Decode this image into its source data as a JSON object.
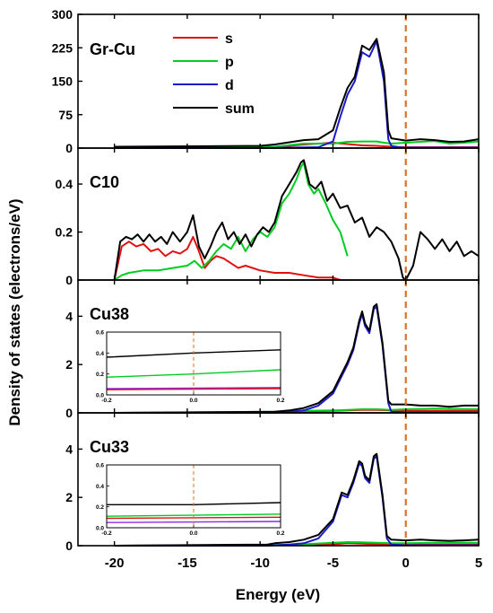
{
  "figure": {
    "xlabel": "Energy (eV)",
    "ylabel": "Density of states (electrons/eV)",
    "xticks": [
      "-20",
      "-15",
      "-10",
      "-5",
      "0",
      "5"
    ],
    "xlim": [
      -22.5,
      5
    ],
    "fermi_level": 0
  },
  "colors": {
    "s": "#e01010",
    "p": "#00cc22",
    "d": "#1a1acc",
    "sum": "#000000",
    "fermi": "#e07020",
    "inset_d": "#8a2be2"
  },
  "chart_data": [
    {
      "type": "line",
      "title": "Gr-Cu",
      "ylim": [
        0,
        300
      ],
      "yticks": [
        "0",
        "75",
        "150",
        "225",
        "300"
      ],
      "legend": {
        "position": "top-left",
        "entries": [
          "s",
          "p",
          "d",
          "sum"
        ]
      },
      "series": [
        {
          "name": "s",
          "x": [
            -20,
            -9,
            -7,
            -5,
            -4,
            -3,
            -2,
            -1.5,
            -1,
            0,
            2,
            5
          ],
          "values": [
            1,
            2,
            8,
            12,
            9,
            6,
            5,
            4,
            3,
            2,
            2,
            2
          ]
        },
        {
          "name": "p",
          "x": [
            -20,
            -9,
            -7,
            -5,
            -4,
            -3,
            -2,
            -1.5,
            -1,
            0,
            1,
            2,
            3,
            4,
            5
          ],
          "values": [
            2,
            3,
            10,
            10,
            14,
            15,
            15,
            12,
            10,
            12,
            14,
            16,
            10,
            12,
            15
          ]
        },
        {
          "name": "d",
          "x": [
            -20,
            -10,
            -8,
            -6,
            -5,
            -4.5,
            -4,
            -3.5,
            -3,
            -2.5,
            -2,
            -1.5,
            -1.2,
            -1,
            -0.5,
            0,
            2,
            5
          ],
          "values": [
            0,
            0,
            1,
            2,
            15,
            70,
            120,
            150,
            215,
            205,
            240,
            150,
            20,
            5,
            2,
            1,
            1,
            1
          ]
        },
        {
          "name": "sum",
          "x": [
            -20,
            -10,
            -9,
            -7,
            -6,
            -5,
            -4.5,
            -4,
            -3.5,
            -3,
            -2.5,
            -2,
            -1.5,
            -1.2,
            -1,
            0,
            1,
            2,
            3,
            4,
            5
          ],
          "values": [
            3,
            5,
            8,
            18,
            20,
            40,
            90,
            135,
            160,
            230,
            220,
            245,
            170,
            40,
            22,
            17,
            20,
            18,
            14,
            15,
            20
          ]
        }
      ]
    },
    {
      "type": "line",
      "title": "C10",
      "ylim": [
        0,
        0.55
      ],
      "yticks": [
        "0",
        "0.2",
        "0.4"
      ],
      "series": [
        {
          "name": "s",
          "x": [
            -20,
            -19.5,
            -19,
            -18.5,
            -18,
            -17.5,
            -17,
            -16.5,
            -16,
            -15.5,
            -15,
            -14.6,
            -14.2,
            -13.8,
            -13.4,
            -13,
            -12.5,
            -12,
            -11.5,
            -11,
            -10,
            -9,
            -8,
            -7,
            -6,
            -5,
            -4.5
          ],
          "values": [
            0,
            0.14,
            0.16,
            0.14,
            0.15,
            0.12,
            0.13,
            0.1,
            0.12,
            0.11,
            0.13,
            0.18,
            0.12,
            0.05,
            0.08,
            0.1,
            0.09,
            0.07,
            0.05,
            0.06,
            0.04,
            0.03,
            0.03,
            0.02,
            0.01,
            0.01,
            0
          ]
        },
        {
          "name": "p",
          "x": [
            -20,
            -19.5,
            -19,
            -18,
            -17,
            -16,
            -15,
            -14.5,
            -14,
            -13.5,
            -13,
            -12.5,
            -12,
            -11.5,
            -11,
            -10.5,
            -10,
            -9.5,
            -9,
            -8.5,
            -8,
            -7.5,
            -7.2,
            -7,
            -6.7,
            -6.3,
            -6,
            -5.5,
            -5,
            -4.5,
            -4
          ],
          "values": [
            0,
            0.02,
            0.03,
            0.04,
            0.04,
            0.05,
            0.06,
            0.08,
            0.05,
            0.08,
            0.12,
            0.15,
            0.13,
            0.18,
            0.12,
            0.17,
            0.2,
            0.18,
            0.22,
            0.32,
            0.36,
            0.42,
            0.47,
            0.49,
            0.4,
            0.36,
            0.38,
            0.32,
            0.25,
            0.2,
            0.1
          ]
        },
        {
          "name": "sum",
          "x": [
            -20,
            -19.6,
            -19.2,
            -18.8,
            -18.4,
            -18,
            -17.6,
            -17.2,
            -16.8,
            -16.4,
            -16,
            -15.5,
            -15,
            -14.6,
            -14.2,
            -13.8,
            -13.4,
            -13,
            -12.6,
            -12.2,
            -11.8,
            -11.4,
            -11,
            -10.6,
            -10.2,
            -9.8,
            -9.4,
            -9,
            -8.5,
            -8,
            -7.5,
            -7.2,
            -7,
            -6.6,
            -6.2,
            -5.8,
            -5.4,
            -5,
            -4.5,
            -4,
            -3.5,
            -3,
            -2.5,
            -2,
            -1.5,
            -1,
            -0.5,
            -0.2,
            0,
            0.5,
            1,
            1.5,
            2,
            2.5,
            3,
            3.5,
            4,
            4.5,
            5
          ],
          "values": [
            0,
            0.16,
            0.18,
            0.17,
            0.19,
            0.16,
            0.19,
            0.16,
            0.18,
            0.15,
            0.2,
            0.16,
            0.2,
            0.27,
            0.14,
            0.09,
            0.14,
            0.2,
            0.24,
            0.17,
            0.2,
            0.15,
            0.19,
            0.14,
            0.19,
            0.22,
            0.2,
            0.24,
            0.35,
            0.4,
            0.45,
            0.49,
            0.5,
            0.4,
            0.38,
            0.41,
            0.33,
            0.36,
            0.3,
            0.31,
            0.24,
            0.26,
            0.18,
            0.22,
            0.2,
            0.16,
            0.09,
            0.01,
            0.0,
            0.06,
            0.2,
            0.17,
            0.13,
            0.17,
            0.12,
            0.16,
            0.1,
            0.12,
            0.1
          ]
        }
      ]
    },
    {
      "type": "line",
      "title": "Cu38",
      "ylim": [
        0,
        5.5
      ],
      "yticks": [
        "0",
        "2",
        "4"
      ],
      "series": [
        {
          "name": "s",
          "x": [
            -20,
            -9,
            -7,
            -5,
            -4,
            -3,
            -2,
            -1,
            0,
            2,
            5
          ],
          "values": [
            0,
            0.02,
            0.05,
            0.08,
            0.1,
            0.12,
            0.12,
            0.1,
            0.08,
            0.08,
            0.08
          ]
        },
        {
          "name": "p",
          "x": [
            -20,
            -9,
            -7,
            -5,
            -4,
            -3,
            -2,
            -1,
            0,
            2,
            5
          ],
          "values": [
            0,
            0.05,
            0.08,
            0.1,
            0.12,
            0.15,
            0.15,
            0.12,
            0.15,
            0.18,
            0.15
          ]
        },
        {
          "name": "d",
          "x": [
            -20,
            -9,
            -8,
            -7,
            -6,
            -5,
            -4.5,
            -4,
            -3.6,
            -3.2,
            -3,
            -2.8,
            -2.5,
            -2.2,
            -2,
            -1.6,
            -1.2,
            -1,
            0,
            2,
            5
          ],
          "values": [
            0,
            0,
            0.05,
            0.1,
            0.3,
            0.8,
            1.4,
            2.0,
            2.6,
            3.7,
            4.1,
            3.6,
            3.3,
            4.3,
            4.4,
            2.8,
            0.4,
            0.05,
            0.02,
            0.02,
            0.02
          ]
        },
        {
          "name": "sum",
          "x": [
            -20,
            -9,
            -8,
            -7,
            -6,
            -5,
            -4.5,
            -4,
            -3.6,
            -3.2,
            -3,
            -2.8,
            -2.5,
            -2.2,
            -2,
            -1.6,
            -1.2,
            -1,
            0,
            1,
            2,
            3,
            4,
            5
          ],
          "values": [
            0,
            0.05,
            0.1,
            0.2,
            0.4,
            0.9,
            1.5,
            2.1,
            2.7,
            3.8,
            4.2,
            3.7,
            3.4,
            4.4,
            4.5,
            2.9,
            0.5,
            0.35,
            0.35,
            0.3,
            0.3,
            0.25,
            0.3,
            0.3
          ]
        }
      ],
      "inset": {
        "xlim": [
          -0.2,
          0.2
        ],
        "ylim": [
          0,
          0.6
        ],
        "xticks": [
          "-0.2",
          "0.0",
          "0.2"
        ],
        "yticks": [
          "0.0",
          "0.2",
          "0.4",
          "0.6"
        ],
        "series": [
          {
            "name": "sum",
            "x": [
              -0.2,
              0,
              0.2
            ],
            "values": [
              0.36,
              0.4,
              0.43
            ]
          },
          {
            "name": "p",
            "x": [
              -0.2,
              0,
              0.2
            ],
            "values": [
              0.17,
              0.2,
              0.24
            ]
          },
          {
            "name": "d",
            "x": [
              -0.2,
              0.2
            ],
            "values": [
              0.06,
              0.07
            ]
          },
          {
            "name": "s",
            "x": [
              -0.2,
              0.2
            ],
            "values": [
              0.05,
              0.06
            ]
          }
        ]
      }
    },
    {
      "type": "line",
      "title": "Cu33",
      "ylim": [
        0,
        5.5
      ],
      "yticks": [
        "0",
        "2",
        "4"
      ],
      "series": [
        {
          "name": "s",
          "x": [
            -20,
            -9,
            -7,
            -5,
            -4,
            -3,
            -2,
            -1,
            0,
            2,
            5
          ],
          "values": [
            0,
            0.02,
            0.04,
            0.06,
            0.1,
            0.08,
            0.06,
            0.05,
            0.04,
            0.05,
            0.05
          ]
        },
        {
          "name": "p",
          "x": [
            -20,
            -9,
            -7,
            -5,
            -4,
            -3,
            -2,
            -1,
            0,
            2,
            5
          ],
          "values": [
            0,
            0.03,
            0.06,
            0.12,
            0.15,
            0.14,
            0.12,
            0.1,
            0.1,
            0.12,
            0.12
          ]
        },
        {
          "name": "d",
          "x": [
            -20,
            -9.5,
            -8,
            -7,
            -6,
            -5,
            -4.4,
            -4,
            -3.6,
            -3.2,
            -3,
            -2.8,
            -2.5,
            -2.2,
            -2,
            -1.6,
            -1.3,
            -1,
            0,
            2,
            5
          ],
          "values": [
            0,
            0,
            0.05,
            0.1,
            0.3,
            1.0,
            2.1,
            2.0,
            2.6,
            3.4,
            3.3,
            2.8,
            2.6,
            3.6,
            3.7,
            2.0,
            0.3,
            0.05,
            0.02,
            0.02,
            0.02
          ]
        },
        {
          "name": "sum",
          "x": [
            -20,
            -9.5,
            -9,
            -8,
            -7,
            -6,
            -5,
            -4.4,
            -4,
            -3.6,
            -3.2,
            -3,
            -2.8,
            -2.5,
            -2.2,
            -2,
            -1.6,
            -1.3,
            -1,
            0,
            1,
            2,
            3,
            4,
            5
          ],
          "values": [
            0,
            0.05,
            0.1,
            0.15,
            0.25,
            0.45,
            1.1,
            2.2,
            2.1,
            2.7,
            3.5,
            3.4,
            2.9,
            2.7,
            3.7,
            3.8,
            2.1,
            0.4,
            0.25,
            0.22,
            0.25,
            0.22,
            0.2,
            0.22,
            0.25
          ]
        }
      ],
      "inset": {
        "xlim": [
          -0.2,
          0.2
        ],
        "ylim": [
          0,
          0.6
        ],
        "xticks": [
          "-0.2",
          "0.0",
          "0.2"
        ],
        "yticks": [
          "0.0",
          "0.2",
          "0.4",
          "0.6"
        ],
        "series": [
          {
            "name": "sum",
            "x": [
              -0.2,
              0,
              0.2
            ],
            "values": [
              0.22,
              0.22,
              0.24
            ]
          },
          {
            "name": "p",
            "x": [
              -0.2,
              0.2
            ],
            "values": [
              0.11,
              0.13
            ]
          },
          {
            "name": "s",
            "x": [
              -0.2,
              0.2
            ],
            "values": [
              0.09,
              0.1
            ]
          },
          {
            "name": "d",
            "x": [
              -0.2,
              0.2
            ],
            "values": [
              0.05,
              0.06
            ]
          }
        ]
      }
    }
  ]
}
